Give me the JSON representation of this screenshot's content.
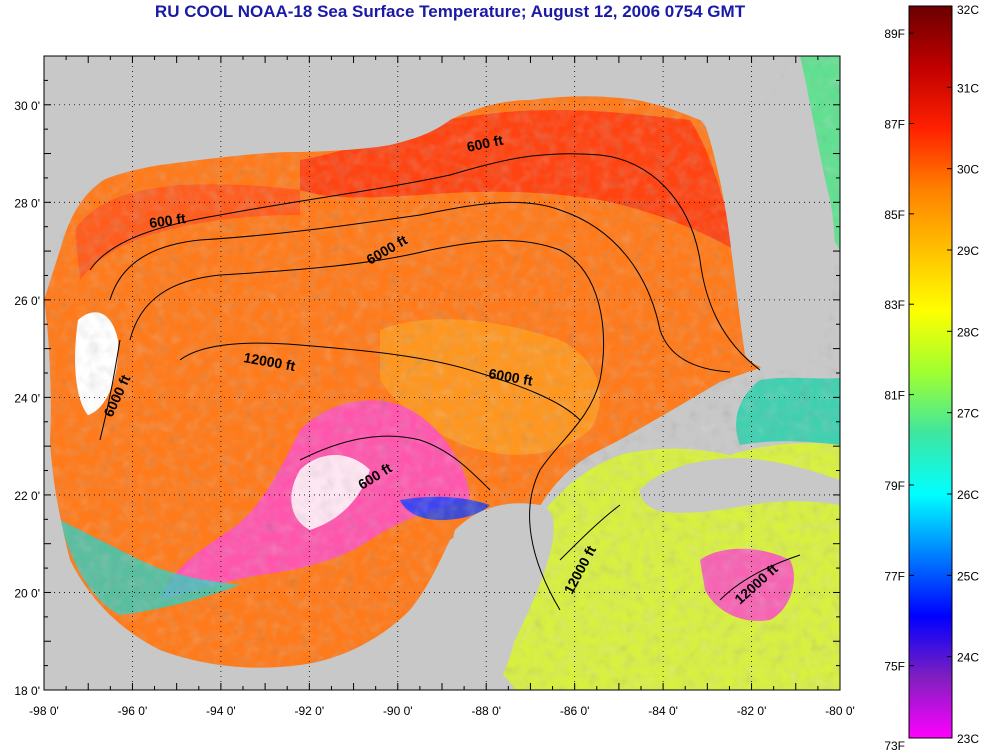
{
  "title": "RU COOL  NOAA-18  Sea Surface Temperature;  August 12, 2006 0754 GMT",
  "map": {
    "lon_range": [
      -98,
      -80
    ],
    "lat_range": [
      18,
      31
    ],
    "lon_tick_labels": [
      "-98 0'",
      "-96 0'",
      "-94 0'",
      "-92 0'",
      "-90 0'",
      "-88 0'",
      "-86 0'",
      "-84 0'",
      "-82 0'",
      "-80 0'"
    ],
    "lat_tick_labels": [
      "18 0'",
      "20 0'",
      "22 0'",
      "24 0'",
      "26 0'",
      "28 0'",
      "30 0'"
    ],
    "grid": true,
    "isobath_labels": [
      "600 ft",
      "600 ft",
      "6000 ft",
      "12000 ft",
      "6000 ft",
      "6000 ft",
      "600 ft",
      "12000 ft",
      "12000 ft"
    ]
  },
  "colorbar": {
    "fahrenheit_labels": [
      "89F",
      "87F",
      "85F",
      "83F",
      "81F",
      "79F",
      "77F",
      "75F",
      "73F"
    ],
    "celsius_labels": [
      "32C",
      "31C",
      "30C",
      "29C",
      "28C",
      "27C",
      "26C",
      "25C",
      "24C",
      "23C"
    ],
    "range_c": [
      23,
      32
    ],
    "colors": [
      "#ff00ff",
      "#7f1fbf",
      "#0000ff",
      "#007fff",
      "#00ffff",
      "#3fe6a0",
      "#a0ff30",
      "#ffff00",
      "#ffc000",
      "#ff8000",
      "#ff2000",
      "#c00000",
      "#6b0000"
    ]
  }
}
